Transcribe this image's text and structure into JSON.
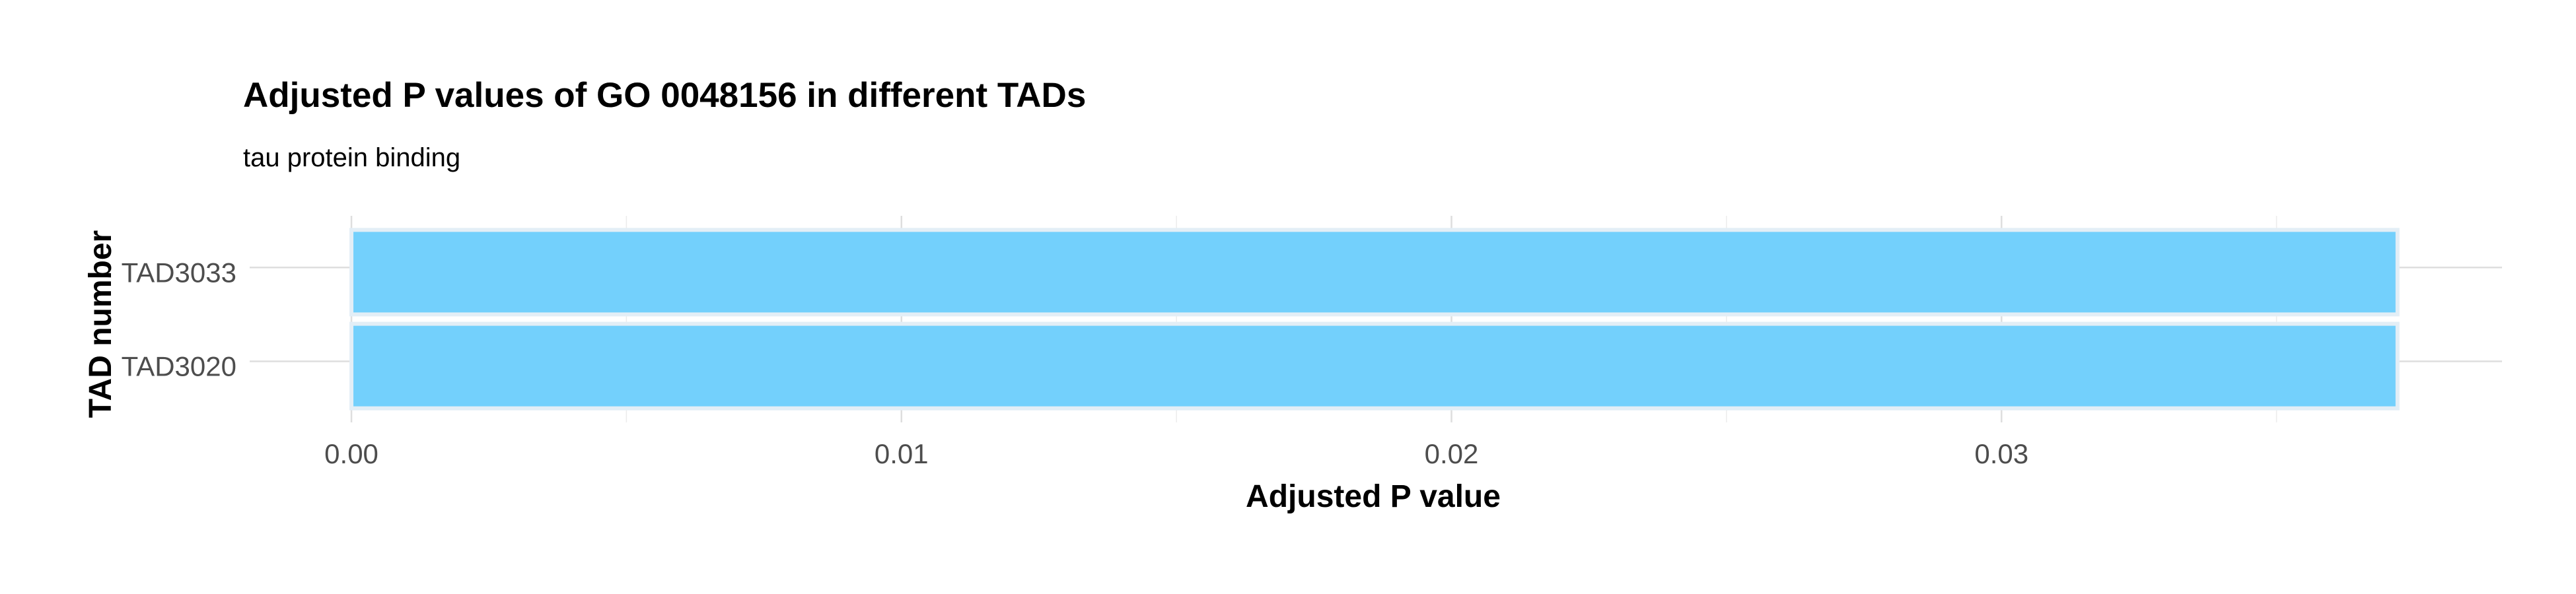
{
  "chart_data": {
    "type": "bar",
    "orientation": "horizontal",
    "title": "Adjusted P values of GO 0048156 in different TADs",
    "subtitle": "tau protein binding",
    "xlabel": "Adjusted P value",
    "ylabel": "TAD number",
    "categories": [
      "TAD3033",
      "TAD3020"
    ],
    "values": [
      0.0372,
      0.0372
    ],
    "xlim": [
      -0.00185,
      0.0391
    ],
    "x_ticks": [
      0.0,
      0.01,
      0.02,
      0.03
    ],
    "x_tick_labels": [
      "0.00",
      "0.01",
      "0.02",
      "0.03"
    ],
    "grid": true,
    "legend": "none",
    "colors": {
      "bar_fill": "#73D0FC",
      "bar_outline": "#E3EEF6",
      "grid_major": "#DEDEDE",
      "grid_minor": "#ECECEC"
    }
  }
}
